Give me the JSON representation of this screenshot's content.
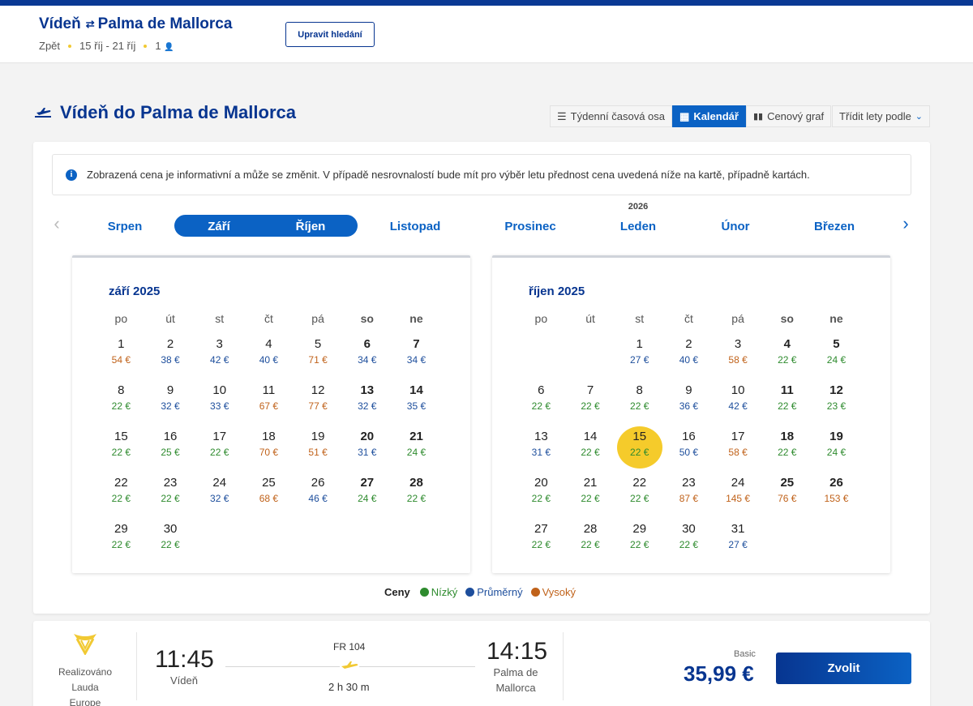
{
  "header": {
    "from": "Vídeň",
    "to": "Palma de Mallorca",
    "trip_type": "Zpět",
    "dates": "15 říj - 21 říj",
    "passengers": "1",
    "edit_label": "Upravit hledání"
  },
  "page": {
    "title": "Vídeň do Palma de Mallorca",
    "views": [
      "Týdenní časová osa",
      "Kalendář",
      "Cenový graf"
    ],
    "active_view": "Kalendář",
    "sort_label": "Třídit lety podle"
  },
  "notice": "Zobrazená cena je informativní a může se změnit. V případě nesrovnalostí bude mít pro výběr letu přednost cena uvedená níže na kartě, případně kartách.",
  "month_nav": {
    "months": [
      "Srpen",
      "Září",
      "Říjen",
      "Listopad",
      "Prosinec",
      "Leden",
      "Únor",
      "Březen"
    ],
    "selected": [
      "Září",
      "Říjen"
    ],
    "year_tag": "2026"
  },
  "weekdays": [
    "po",
    "út",
    "st",
    "čt",
    "pá",
    "so",
    "ne"
  ],
  "calendars": [
    {
      "title": "září 2025",
      "offset": 0,
      "days": [
        {
          "d": "1",
          "p": "54 €",
          "lvl": "high"
        },
        {
          "d": "2",
          "p": "38 €",
          "lvl": "avg"
        },
        {
          "d": "3",
          "p": "42 €",
          "lvl": "avg"
        },
        {
          "d": "4",
          "p": "40 €",
          "lvl": "avg"
        },
        {
          "d": "5",
          "p": "71 €",
          "lvl": "high"
        },
        {
          "d": "6",
          "p": "34 €",
          "lvl": "avg"
        },
        {
          "d": "7",
          "p": "34 €",
          "lvl": "avg"
        },
        {
          "d": "8",
          "p": "22 €",
          "lvl": "low"
        },
        {
          "d": "9",
          "p": "32 €",
          "lvl": "avg"
        },
        {
          "d": "10",
          "p": "33 €",
          "lvl": "avg"
        },
        {
          "d": "11",
          "p": "67 €",
          "lvl": "high"
        },
        {
          "d": "12",
          "p": "77 €",
          "lvl": "high"
        },
        {
          "d": "13",
          "p": "32 €",
          "lvl": "avg"
        },
        {
          "d": "14",
          "p": "35 €",
          "lvl": "avg"
        },
        {
          "d": "15",
          "p": "22 €",
          "lvl": "low"
        },
        {
          "d": "16",
          "p": "25 €",
          "lvl": "low"
        },
        {
          "d": "17",
          "p": "22 €",
          "lvl": "low"
        },
        {
          "d": "18",
          "p": "70 €",
          "lvl": "high"
        },
        {
          "d": "19",
          "p": "51 €",
          "lvl": "high"
        },
        {
          "d": "20",
          "p": "31 €",
          "lvl": "avg"
        },
        {
          "d": "21",
          "p": "24 €",
          "lvl": "low"
        },
        {
          "d": "22",
          "p": "22 €",
          "lvl": "low"
        },
        {
          "d": "23",
          "p": "22 €",
          "lvl": "low"
        },
        {
          "d": "24",
          "p": "32 €",
          "lvl": "avg"
        },
        {
          "d": "25",
          "p": "68 €",
          "lvl": "high"
        },
        {
          "d": "26",
          "p": "46 €",
          "lvl": "avg"
        },
        {
          "d": "27",
          "p": "24 €",
          "lvl": "low"
        },
        {
          "d": "28",
          "p": "22 €",
          "lvl": "low"
        },
        {
          "d": "29",
          "p": "22 €",
          "lvl": "low"
        },
        {
          "d": "30",
          "p": "22 €",
          "lvl": "low"
        }
      ]
    },
    {
      "title": "říjen 2025",
      "offset": 2,
      "selected_day": "15",
      "days": [
        {
          "d": "1",
          "p": "27 €",
          "lvl": "avg"
        },
        {
          "d": "2",
          "p": "40 €",
          "lvl": "avg"
        },
        {
          "d": "3",
          "p": "58 €",
          "lvl": "high"
        },
        {
          "d": "4",
          "p": "22 €",
          "lvl": "low"
        },
        {
          "d": "5",
          "p": "24 €",
          "lvl": "low"
        },
        {
          "d": "6",
          "p": "22 €",
          "lvl": "low"
        },
        {
          "d": "7",
          "p": "22 €",
          "lvl": "low"
        },
        {
          "d": "8",
          "p": "22 €",
          "lvl": "low"
        },
        {
          "d": "9",
          "p": "36 €",
          "lvl": "avg"
        },
        {
          "d": "10",
          "p": "42 €",
          "lvl": "avg"
        },
        {
          "d": "11",
          "p": "22 €",
          "lvl": "low"
        },
        {
          "d": "12",
          "p": "23 €",
          "lvl": "low"
        },
        {
          "d": "13",
          "p": "31 €",
          "lvl": "avg"
        },
        {
          "d": "14",
          "p": "22 €",
          "lvl": "low"
        },
        {
          "d": "15",
          "p": "22 €",
          "lvl": "low"
        },
        {
          "d": "16",
          "p": "50 €",
          "lvl": "avg"
        },
        {
          "d": "17",
          "p": "58 €",
          "lvl": "high"
        },
        {
          "d": "18",
          "p": "22 €",
          "lvl": "low"
        },
        {
          "d": "19",
          "p": "24 €",
          "lvl": "low"
        },
        {
          "d": "20",
          "p": "22 €",
          "lvl": "low"
        },
        {
          "d": "21",
          "p": "22 €",
          "lvl": "low"
        },
        {
          "d": "22",
          "p": "22 €",
          "lvl": "low"
        },
        {
          "d": "23",
          "p": "87 €",
          "lvl": "high"
        },
        {
          "d": "24",
          "p": "145 €",
          "lvl": "high"
        },
        {
          "d": "25",
          "p": "76 €",
          "lvl": "high"
        },
        {
          "d": "26",
          "p": "153 €",
          "lvl": "high"
        },
        {
          "d": "27",
          "p": "22 €",
          "lvl": "low"
        },
        {
          "d": "28",
          "p": "22 €",
          "lvl": "low"
        },
        {
          "d": "29",
          "p": "22 €",
          "lvl": "low"
        },
        {
          "d": "30",
          "p": "22 €",
          "lvl": "low"
        },
        {
          "d": "31",
          "p": "27 €",
          "lvl": "avg"
        }
      ]
    }
  ],
  "legend": {
    "label": "Ceny",
    "items": [
      {
        "name": "Nízký",
        "color": "#2e8b2e"
      },
      {
        "name": "Průměrný",
        "color": "#1d4e9c"
      },
      {
        "name": "Vysoký",
        "color": "#c0621a"
      }
    ]
  },
  "flight": {
    "operator": "Realizováno Lauda Europe",
    "operator_lines": [
      "Realizováno",
      "Lauda",
      "Europe"
    ],
    "dep_time": "11:45",
    "dep_place": "Vídeň",
    "flight_no": "FR 104",
    "duration": "2 h 30 m",
    "arr_time": "14:15",
    "arr_place_lines": [
      "Palma de",
      "Mallorca"
    ],
    "fare": "Basic",
    "price": "35,99 €",
    "select_label": "Zvolit"
  },
  "colors": {
    "brand": "#073590",
    "accent": "#0b62c4",
    "highlight": "#f5cb2b",
    "top_bar": "#0a3994"
  }
}
